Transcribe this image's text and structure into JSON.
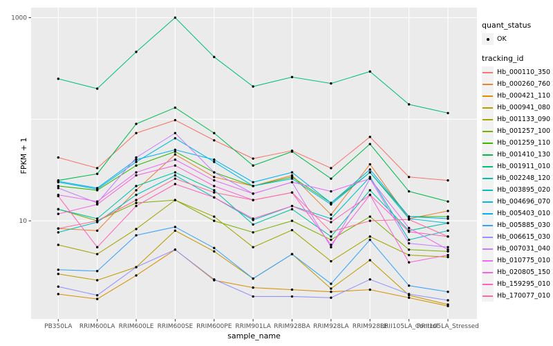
{
  "figure": {
    "background": "#FFFFFF",
    "panel_background": "#EBEBEB",
    "grid_color": "#FFFFFF",
    "tick_color": "#333333",
    "tick_label_color": "#4D4D4D",
    "point_color": "#000000",
    "legend_key_fill": "#F2F2F2"
  },
  "axes": {
    "x_label": "sample_name",
    "y_label": "FPKM + 1",
    "y_scale": "log10",
    "y_tick_labels": [
      "1000",
      "10"
    ],
    "y_tick_values": [
      1000,
      10
    ],
    "y_grid_values": [
      1000,
      100,
      10
    ]
  },
  "legend": {
    "quant_status": {
      "title": "quant_status",
      "ok_label": "OK"
    },
    "tracking_id": {
      "title": "tracking_id"
    }
  },
  "chart_data": {
    "type": "line",
    "title": "",
    "xlabel": "sample_name",
    "ylabel": "FPKM + 1",
    "y_scale": "log10",
    "ylim": [
      1,
      1100
    ],
    "grid": true,
    "legend_position": "right",
    "categories": [
      "PB350LA",
      "RRIM600LA",
      "RRIM600LE",
      "RRIM600SE",
      "RRIM600PE",
      "RRIM901LA",
      "RRIM928BA",
      "RRIM928LA",
      "RRIM928LE",
      "RRII105LA_Control",
      "RRII105LA_Stressed"
    ],
    "quant_status": "OK",
    "series": [
      {
        "name": "Hb_000110_350",
        "color": "#F8766D",
        "values": [
          42,
          33,
          73,
          98,
          62,
          41,
          49,
          33,
          67,
          27,
          25
        ]
      },
      {
        "name": "Hb_000260_760",
        "color": "#EA8331",
        "values": [
          8.4,
          8,
          20,
          45,
          27,
          22,
          28,
          11.5,
          36,
          10.5,
          12.5
        ]
      },
      {
        "name": "Hb_000421_110",
        "color": "#D89000",
        "values": [
          1.9,
          1.7,
          2.9,
          5.2,
          2.6,
          2.2,
          2.1,
          2.0,
          2.1,
          1.75,
          1.45
        ]
      },
      {
        "name": "Hb_000941_080",
        "color": "#C09B00",
        "values": [
          3.0,
          2.6,
          3.5,
          8.0,
          5.0,
          2.7,
          4.7,
          2.15,
          4.1,
          1.85,
          1.5
        ]
      },
      {
        "name": "Hb_001133_090",
        "color": "#A3A500",
        "values": [
          5.8,
          4.7,
          8.3,
          16,
          11,
          5.5,
          8.1,
          4.0,
          7.0,
          4.6,
          4.4
        ]
      },
      {
        "name": "Hb_001257_100",
        "color": "#7CAE00",
        "values": [
          13,
          10,
          15,
          16,
          10,
          7.7,
          10,
          6.5,
          11,
          5.2,
          5.0
        ]
      },
      {
        "name": "Hb_001259_110",
        "color": "#39B600",
        "values": [
          22,
          20,
          35,
          48,
          30,
          22,
          27,
          15,
          30,
          11,
          11
        ]
      },
      {
        "name": "Hb_001410_130",
        "color": "#00BB4E",
        "values": [
          25,
          29,
          90,
          130,
          73,
          35,
          48,
          26,
          57,
          19.5,
          15.5
        ]
      },
      {
        "name": "Hb_001911_010",
        "color": "#00BF7D",
        "values": [
          250,
          200,
          460,
          1000,
          410,
          210,
          260,
          225,
          295,
          140,
          115
        ]
      },
      {
        "name": "Hb_002248_120",
        "color": "#00C1A3",
        "values": [
          13,
          10.5,
          22,
          30,
          20,
          9.2,
          13,
          7.0,
          20,
          8.0,
          9.5
        ]
      },
      {
        "name": "Hb_003895_020",
        "color": "#00BFC4",
        "values": [
          7.7,
          9.7,
          18,
          28,
          17,
          10.2,
          14,
          10.5,
          27,
          6.5,
          8.0
        ]
      },
      {
        "name": "Hb_004696_070",
        "color": "#00BAE0",
        "values": [
          24,
          20.5,
          38,
          65,
          38,
          22,
          26,
          14.5,
          30,
          10.5,
          9.5
        ]
      },
      {
        "name": "Hb_005403_010",
        "color": "#00B0F6",
        "values": [
          24.5,
          21,
          40,
          50,
          40,
          24,
          30,
          15,
          32,
          11,
          10.5
        ]
      },
      {
        "name": "Hb_005885_030",
        "color": "#35A2FF",
        "values": [
          3.3,
          3.2,
          7.2,
          8.7,
          5.4,
          2.7,
          4.7,
          2.4,
          6.5,
          2.3,
          2.0
        ]
      },
      {
        "name": "Hb_006615_030",
        "color": "#9590FF",
        "values": [
          2.25,
          1.85,
          3.5,
          5.2,
          2.65,
          1.8,
          1.8,
          1.75,
          2.65,
          1.9,
          1.65
        ]
      },
      {
        "name": "Hb_007031_040",
        "color": "#C77CFF",
        "values": [
          21,
          15,
          42,
          73,
          30,
          18.5,
          24,
          5.5,
          26,
          6.0,
          5.5
        ]
      },
      {
        "name": "Hb_010775_010",
        "color": "#E76BF3",
        "values": [
          18,
          15.5,
          30,
          40,
          25,
          18.5,
          24,
          19.5,
          26,
          8.5,
          5.2
        ]
      },
      {
        "name": "Hb_020805_150",
        "color": "#FA62DB",
        "values": [
          11.7,
          14.5,
          28,
          35,
          22,
          16,
          19,
          5.8,
          18,
          3.9,
          4.6
        ]
      },
      {
        "name": "Hb_159295_010",
        "color": "#FF62BC",
        "values": [
          17.5,
          5.5,
          14,
          23,
          17,
          10.5,
          14,
          9.7,
          18,
          7.8,
          7.0
        ]
      },
      {
        "name": "Hb_170077_010",
        "color": "#FF6A98",
        "values": [
          8.4,
          10,
          16,
          26,
          19,
          16,
          19,
          7.8,
          10,
          10.3,
          7.0
        ]
      }
    ]
  }
}
